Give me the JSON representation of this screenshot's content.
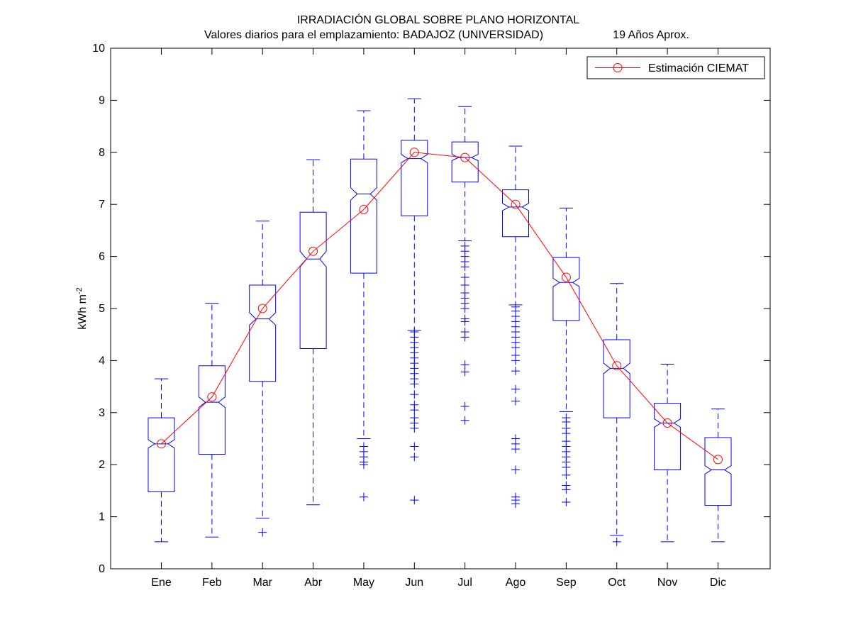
{
  "chart_data": {
    "type": "boxplot",
    "title": "IRRADIACIÓN GLOBAL SOBRE PLANO HORIZONTAL",
    "subtitle": "Valores diarios para el emplazamiento:  BADAJOZ (UNIVERSIDAD)",
    "subtitle_right": "19 Años Aprox.",
    "ylabel": "kWh m",
    "ylabel_sup": "-2",
    "xlabel": "",
    "ylim": [
      0,
      10
    ],
    "yticks": [
      "0",
      "1",
      "2",
      "3",
      "4",
      "5",
      "6",
      "7",
      "8",
      "9",
      "10"
    ],
    "categories": [
      "Ene",
      "Feb",
      "Mar",
      "Abr",
      "May",
      "Jun",
      "Jul",
      "Ago",
      "Sep",
      "Oct",
      "Nov",
      "Dic"
    ],
    "grid": false,
    "legend_position": "top-right",
    "box_color": "#0000ff",
    "line_color": "#ff0000",
    "boxes": [
      {
        "category": "Ene",
        "whisker_low": 0.52,
        "q1": 1.48,
        "median": 2.4,
        "q3": 2.9,
        "whisker_high": 3.65,
        "notch_low": 2.32,
        "notch_high": 2.48,
        "outliers": []
      },
      {
        "category": "Feb",
        "whisker_low": 0.61,
        "q1": 2.2,
        "median": 3.2,
        "q3": 3.9,
        "whisker_high": 5.1,
        "notch_low": 3.1,
        "notch_high": 3.3,
        "outliers": []
      },
      {
        "category": "Mar",
        "whisker_low": 0.97,
        "q1": 3.6,
        "median": 4.8,
        "q3": 5.45,
        "whisker_high": 6.68,
        "notch_low": 4.68,
        "notch_high": 4.92,
        "outliers": [
          0.7
        ]
      },
      {
        "category": "Abr",
        "whisker_low": 1.23,
        "q1": 4.23,
        "median": 5.95,
        "q3": 6.85,
        "whisker_high": 7.86,
        "notch_low": 5.8,
        "notch_high": 6.1,
        "outliers": []
      },
      {
        "category": "May",
        "whisker_low": 2.5,
        "q1": 5.68,
        "median": 7.2,
        "q3": 7.87,
        "whisker_high": 8.8,
        "notch_low": 7.08,
        "notch_high": 7.32,
        "outliers": [
          1.38,
          2.0,
          2.05,
          2.15,
          2.25,
          2.35
        ]
      },
      {
        "category": "Jun",
        "whisker_low": 4.58,
        "q1": 6.78,
        "median": 7.88,
        "q3": 8.23,
        "whisker_high": 9.03,
        "notch_low": 7.8,
        "notch_high": 7.96,
        "outliers": [
          1.32,
          2.15,
          2.35,
          2.7,
          2.8,
          2.9,
          3.05,
          3.15,
          3.35,
          3.55,
          3.65,
          3.75,
          3.85,
          3.95,
          4.05,
          4.15,
          4.25,
          4.35,
          4.45,
          4.55
        ]
      },
      {
        "category": "Jul",
        "whisker_low": 6.3,
        "q1": 7.43,
        "median": 7.9,
        "q3": 8.2,
        "whisker_high": 8.88,
        "notch_low": 7.84,
        "notch_high": 7.96,
        "outliers": [
          2.85,
          3.12,
          3.78,
          3.92,
          4.45,
          4.55,
          4.75,
          4.8,
          5.0,
          5.1,
          5.2,
          5.3,
          5.45,
          5.6,
          5.8,
          5.9,
          6.0,
          6.1,
          6.2
        ]
      },
      {
        "category": "Ago",
        "whisker_low": 5.07,
        "q1": 6.38,
        "median": 6.95,
        "q3": 7.28,
        "whisker_high": 8.12,
        "notch_low": 6.88,
        "notch_high": 7.02,
        "outliers": [
          1.25,
          1.32,
          1.38,
          1.9,
          2.3,
          2.4,
          2.5,
          3.22,
          3.45,
          3.8,
          4.0,
          4.1,
          4.25,
          4.35,
          4.45,
          4.55,
          4.65,
          4.75,
          4.85,
          4.95,
          5.03
        ]
      },
      {
        "category": "Sep",
        "whisker_low": 3.02,
        "q1": 4.77,
        "median": 5.5,
        "q3": 5.98,
        "whisker_high": 6.93,
        "notch_low": 5.42,
        "notch_high": 5.58,
        "outliers": [
          1.28,
          1.52,
          1.6,
          1.8,
          1.95,
          2.05,
          2.15,
          2.25,
          2.35,
          2.45,
          2.6,
          2.7,
          2.82,
          2.9
        ]
      },
      {
        "category": "Oct",
        "whisker_low": 0.64,
        "q1": 2.9,
        "median": 3.85,
        "q3": 4.4,
        "whisker_high": 5.48,
        "notch_low": 3.75,
        "notch_high": 3.95,
        "outliers": [
          0.52
        ]
      },
      {
        "category": "Nov",
        "whisker_low": 0.52,
        "q1": 1.9,
        "median": 2.8,
        "q3": 3.18,
        "whisker_high": 3.93,
        "notch_low": 2.72,
        "notch_high": 2.88,
        "outliers": []
      },
      {
        "category": "Dic",
        "whisker_low": 0.52,
        "q1": 1.22,
        "median": 1.9,
        "q3": 2.52,
        "whisker_high": 3.07,
        "notch_low": 1.82,
        "notch_high": 1.98,
        "outliers": []
      }
    ],
    "series": [
      {
        "name": "Estimación CIEMAT",
        "type": "line",
        "marker": "circle",
        "values": [
          2.4,
          3.3,
          5.0,
          6.1,
          6.9,
          8.0,
          7.9,
          7.0,
          5.6,
          3.9,
          2.8,
          2.1
        ]
      }
    ]
  }
}
